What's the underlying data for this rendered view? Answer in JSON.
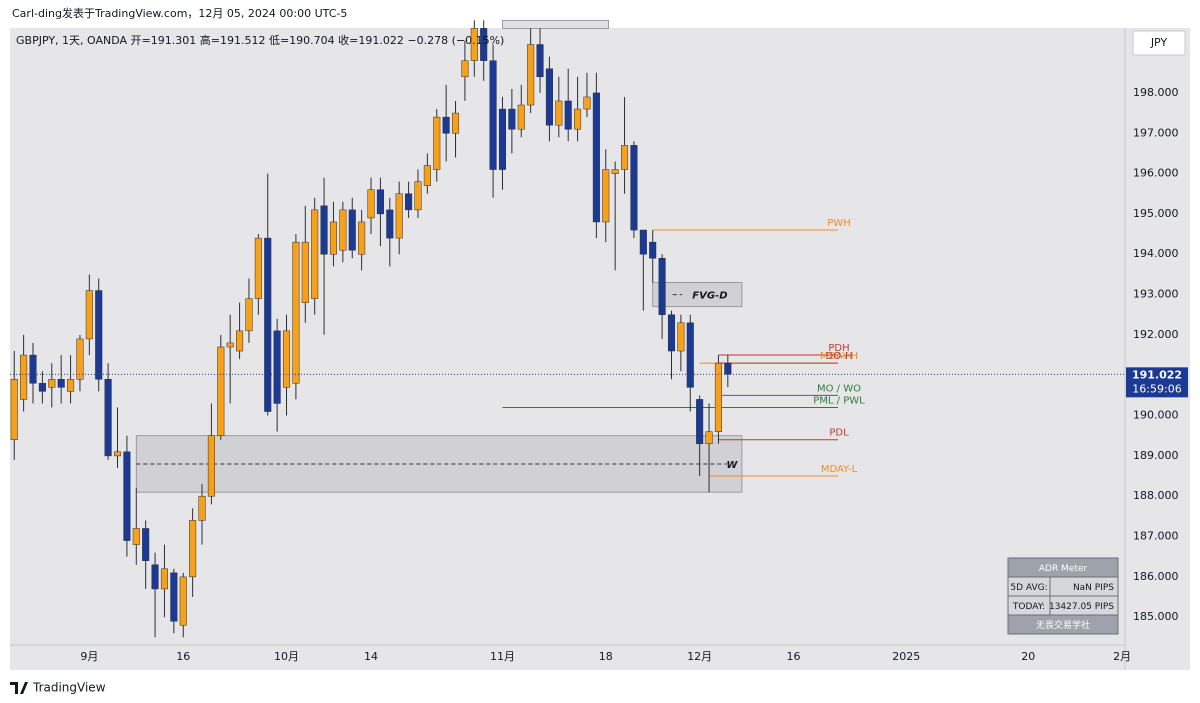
{
  "header": {
    "author_line": "Carl-ding发表于TradingView.com，12月 05, 2024 00:00 UTC-5",
    "symbol_line": "GBPJPY, 1天, OANDA  开=191.301  高=191.512  低=190.704  收=191.022  −0.278 (−0.15%)",
    "currency": "JPY",
    "countdown": "16:59:06",
    "brand": "TradingView"
  },
  "chart_data": {
    "type": "candlestick",
    "up_color": "#f7a11a",
    "down_color": "#1c3a94",
    "open": [
      189.4,
      190.4,
      191.5,
      190.8,
      190.7,
      190.9,
      190.6,
      190.9,
      191.9,
      193.1,
      190.9,
      189.0,
      189.1,
      186.8,
      187.2,
      186.3,
      185.7,
      186.1,
      184.8,
      186.0,
      187.4,
      188.0,
      189.5,
      191.7,
      191.6,
      192.1,
      192.9,
      194.4,
      192.1,
      190.7,
      190.8,
      192.8,
      192.9,
      195.2,
      194.0,
      194.1,
      195.1,
      194.0,
      194.9,
      195.6,
      195.1,
      194.4,
      195.5,
      195.1,
      195.7,
      196.1,
      197.4,
      197.0,
      198.4,
      198.8,
      199.6,
      198.8,
      197.6,
      197.6,
      197.1,
      197.7,
      199.2,
      198.6,
      197.2,
      197.8,
      197.1,
      197.6,
      198.0,
      194.8,
      196.0,
      196.1,
      196.7,
      194.6,
      194.3,
      193.9,
      192.5,
      191.6,
      192.3,
      190.4,
      189.3,
      189.6,
      191.301
    ],
    "high": [
      191.6,
      192.0,
      191.8,
      191.1,
      191.3,
      191.5,
      191.5,
      192.0,
      193.5,
      193.4,
      191.3,
      190.2,
      189.5,
      188.2,
      187.4,
      186.6,
      186.8,
      186.2,
      186.1,
      187.7,
      188.3,
      190.3,
      192.0,
      192.5,
      192.8,
      193.4,
      194.5,
      196.0,
      192.4,
      192.5,
      194.5,
      195.2,
      195.4,
      195.9,
      195.3,
      195.3,
      195.4,
      195.1,
      195.9,
      195.9,
      195.4,
      195.8,
      195.8,
      196.1,
      196.5,
      197.6,
      198.2,
      197.8,
      199.3,
      199.8,
      199.8,
      199.2,
      197.9,
      198.1,
      198.2,
      199.6,
      199.6,
      198.9,
      198.4,
      198.6,
      198.4,
      198.5,
      198.5,
      196.6,
      196.3,
      197.9,
      196.8,
      194.6,
      194.6,
      194.0,
      192.6,
      192.5,
      192.5,
      190.5,
      190.3,
      191.5,
      191.512
    ],
    "low": [
      188.9,
      190.1,
      190.3,
      190.3,
      190.2,
      190.3,
      190.3,
      190.6,
      191.5,
      190.6,
      188.9,
      188.7,
      186.5,
      186.3,
      185.7,
      184.5,
      185.0,
      184.6,
      184.5,
      185.5,
      186.8,
      187.8,
      189.4,
      190.3,
      191.4,
      191.8,
      192.5,
      190.0,
      189.6,
      190.0,
      190.4,
      192.3,
      192.5,
      192.0,
      193.7,
      193.8,
      193.9,
      193.6,
      194.5,
      194.2,
      193.7,
      194.0,
      194.9,
      194.9,
      195.5,
      195.8,
      196.3,
      196.4,
      197.8,
      198.4,
      198.3,
      195.4,
      195.6,
      196.5,
      196.9,
      197.5,
      198.0,
      196.8,
      196.9,
      196.8,
      196.8,
      197.4,
      194.4,
      194.3,
      193.6,
      195.5,
      194.4,
      192.6,
      193.3,
      191.9,
      190.9,
      191.1,
      190.1,
      188.5,
      188.1,
      189.3,
      190.704
    ],
    "close": [
      190.9,
      191.5,
      190.8,
      190.6,
      190.9,
      190.7,
      190.9,
      191.9,
      193.1,
      190.9,
      189.0,
      189.1,
      186.9,
      187.2,
      186.4,
      185.7,
      186.2,
      184.9,
      186.0,
      187.4,
      188.0,
      189.5,
      191.7,
      191.8,
      192.1,
      192.9,
      194.4,
      190.1,
      190.3,
      192.1,
      194.3,
      194.3,
      195.1,
      194.0,
      194.8,
      195.1,
      194.1,
      194.8,
      195.6,
      195.0,
      194.4,
      195.5,
      195.1,
      195.8,
      196.2,
      197.4,
      197.0,
      197.5,
      198.8,
      199.6,
      198.8,
      196.1,
      196.1,
      197.1,
      197.7,
      199.2,
      198.4,
      197.2,
      197.8,
      197.1,
      197.6,
      197.9,
      194.8,
      196.1,
      196.1,
      196.7,
      194.6,
      194.0,
      193.9,
      192.5,
      191.6,
      192.3,
      190.7,
      189.3,
      189.6,
      191.3,
      191.022
    ],
    "xlim": [
      -0.45,
      118.3
    ],
    "xticks": [
      {
        "value": 8,
        "label": "9月"
      },
      {
        "value": 18,
        "label": "16"
      },
      {
        "value": 29,
        "label": "10月"
      },
      {
        "value": 38,
        "label": "14"
      },
      {
        "value": 52,
        "label": "11月"
      },
      {
        "value": 63,
        "label": "18"
      },
      {
        "value": 73,
        "label": "12月"
      },
      {
        "value": 83,
        "label": "16"
      },
      {
        "value": 95,
        "label": "2025"
      },
      {
        "value": 108,
        "label": "20"
      },
      {
        "value": 118,
        "label": "2月"
      }
    ],
    "ylim": [
      183.74,
      199.61
    ],
    "yticks": [
      {
        "value": 185,
        "label": "185.000"
      },
      {
        "value": 186,
        "label": "186.000"
      },
      {
        "value": 187,
        "label": "187.000"
      },
      {
        "value": 188,
        "label": "188.000"
      },
      {
        "value": 189,
        "label": "189.000"
      },
      {
        "value": 190,
        "label": "190.000"
      },
      {
        "value": 191,
        "label": "191.000"
      },
      {
        "value": 192,
        "label": "192.000"
      },
      {
        "value": 193,
        "label": "193.000"
      },
      {
        "value": 194,
        "label": "194.000"
      },
      {
        "value": 195,
        "label": "195.000"
      },
      {
        "value": 196,
        "label": "196.000"
      },
      {
        "value": 197,
        "label": "197.000"
      },
      {
        "value": 198,
        "label": "198.000"
      }
    ],
    "grid": false,
    "levels": [
      {
        "label": "PWH",
        "value": 194.6,
        "from": 68,
        "color": "#f0892a"
      },
      {
        "label": "PDH",
        "value": 191.5,
        "from": 75,
        "color": "#c0392b"
      },
      {
        "label": "MDAY-H",
        "value": 191.3,
        "from": 73,
        "color": "#f0892a"
      },
      {
        "label": "DO-H",
        "value": 191.3,
        "from": 75,
        "color": "#c0392b"
      },
      {
        "label": "MO / WO",
        "value": 190.5,
        "from": 75,
        "color": "#2e7d32"
      },
      {
        "label": "PML / PWL",
        "value": 190.2,
        "from": 52,
        "color": "#2e7d32"
      },
      {
        "label": "PDL",
        "value": 189.4,
        "from": 75,
        "color": "#c0392b"
      },
      {
        "label": "MDAY-L",
        "value": 188.5,
        "from": 74,
        "color": "#f0892a"
      }
    ],
    "zones": [
      {
        "label": "W",
        "low": 188.1,
        "high": 189.5,
        "from": 13,
        "to": 77.5
      },
      {
        "label": "FVG-D",
        "low": 192.7,
        "high": 193.3,
        "from": 68,
        "to": 77.5
      },
      {
        "low": 199.6,
        "high": 199.8,
        "from": 52,
        "to": 63.3
      }
    ]
  },
  "adr_meter": {
    "title": "ADR Meter",
    "rows": [
      [
        "5D AVG:",
        "NaN PIPS"
      ],
      [
        "TODAY:",
        "13427.05 PIPS"
      ]
    ],
    "footer": "无畏交易学社"
  }
}
